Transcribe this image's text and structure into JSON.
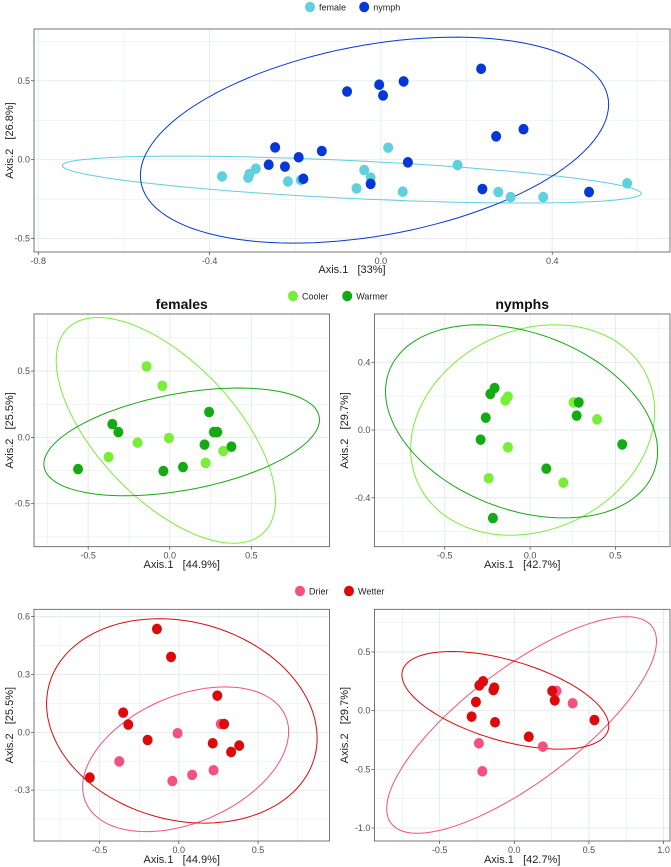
{
  "legends": [
    {
      "items": [
        {
          "label": "female",
          "color": "#5fd0dc"
        },
        {
          "label": "nymph",
          "color": "#0638d8"
        }
      ]
    },
    {
      "items": [
        {
          "label": "Cooler",
          "color": "#78ee38"
        },
        {
          "label": "Warmer",
          "color": "#14aa14"
        }
      ]
    },
    {
      "items": [
        {
          "label": "Drier",
          "color": "#f5507e"
        },
        {
          "label": "Wetter",
          "color": "#dc0a0a"
        }
      ]
    }
  ],
  "chart_data": [
    {
      "type": "scatter",
      "title": "",
      "xlabel": "Axis.1   [33%]",
      "ylabel": "Axis.2   [26.8%]",
      "xlim": [
        -0.81,
        0.675
      ],
      "ylim": [
        -0.585,
        0.828
      ],
      "xticks": [
        -0.8,
        -0.4,
        0.0,
        0.4
      ],
      "xtick_labels": [
        "-0.8",
        "-0.4",
        "0.0",
        "0.4"
      ],
      "yticks": [
        -0.5,
        0.0,
        0.5
      ],
      "ytick_labels": [
        "-0.5",
        "0.0",
        "0.5"
      ],
      "grid": true,
      "series": [
        {
          "name": "female",
          "color": "#5fd0dc",
          "ellipse": {
            "center": [
              -0.068,
              -0.126
            ],
            "u": [
              0.676,
              -0.088
            ],
            "v": [
              0.0,
              0.12
            ]
          },
          "points": [
            [
              -0.371,
              -0.106
            ],
            [
              -0.31,
              -0.114
            ],
            [
              -0.307,
              -0.091
            ],
            [
              -0.292,
              -0.057
            ],
            [
              -0.217,
              -0.138
            ],
            [
              -0.187,
              -0.129
            ],
            [
              0.017,
              0.076
            ],
            [
              -0.039,
              -0.066
            ],
            [
              -0.024,
              -0.114
            ],
            [
              -0.057,
              -0.182
            ],
            [
              0.051,
              -0.203
            ],
            [
              0.179,
              -0.034
            ],
            [
              0.274,
              -0.205
            ],
            [
              0.303,
              -0.237
            ],
            [
              0.379,
              -0.237
            ],
            [
              0.575,
              -0.15
            ]
          ]
        },
        {
          "name": "nymph",
          "color": "#0638d8",
          "ellipse": {
            "center": [
              -0.015,
              0.124
            ],
            "u": [
              0.54,
              0.127
            ],
            "v": [
              0.085,
              0.64
            ]
          },
          "points": [
            [
              -0.247,
              0.078
            ],
            [
              -0.262,
              -0.032
            ],
            [
              -0.224,
              -0.044
            ],
            [
              -0.192,
              0.015
            ],
            [
              -0.181,
              -0.121
            ],
            [
              -0.138,
              0.055
            ],
            [
              -0.079,
              0.432
            ],
            [
              -0.004,
              0.475
            ],
            [
              0.005,
              0.407
            ],
            [
              0.053,
              0.496
            ],
            [
              0.063,
              -0.017
            ],
            [
              -0.024,
              -0.153
            ],
            [
              0.234,
              0.576
            ],
            [
              0.269,
              0.148
            ],
            [
              0.333,
              0.193
            ],
            [
              0.237,
              -0.186
            ],
            [
              0.486,
              -0.205
            ]
          ]
        }
      ]
    },
    {
      "type": "scatter",
      "title": "females",
      "xlabel": "Axis.1   [44.9%]",
      "ylabel": "Axis.2   [25.5%]",
      "xlim": [
        -0.832,
        0.979
      ],
      "ylim": [
        -0.824,
        0.93
      ],
      "xticks": [
        -0.5,
        0.0,
        0.5
      ],
      "xtick_labels": [
        "-0.5",
        "0.0",
        "0.5"
      ],
      "yticks": [
        -0.5,
        0.0,
        0.5
      ],
      "ytick_labels": [
        "-0.5",
        "0.0",
        "0.5"
      ],
      "grid": true,
      "series": [
        {
          "name": "Cooler",
          "color": "#78ee38",
          "ellipse": {
            "center": [
              -0.024,
              0.053
            ],
            "u": [
              0.65,
              -0.34
            ],
            "v": [
              -0.17,
              0.78
            ]
          },
          "points": [
            [
              -0.142,
              0.535
            ],
            [
              -0.045,
              0.389
            ],
            [
              -0.197,
              -0.04
            ],
            [
              -0.005,
              -0.005
            ],
            [
              -0.375,
              -0.148
            ],
            [
              0.22,
              -0.193
            ],
            [
              0.328,
              -0.103
            ]
          ]
        },
        {
          "name": "Warmer",
          "color": "#14aa14",
          "ellipse": {
            "center": [
              0.073,
              -0.034
            ],
            "u": [
              0.827,
              0.089
            ],
            "v": [
              0.171,
              0.396
            ]
          },
          "points": [
            [
              -0.352,
              0.1
            ],
            [
              -0.315,
              0.04
            ],
            [
              -0.562,
              -0.239
            ],
            [
              -0.039,
              -0.254
            ],
            [
              0.081,
              -0.224
            ],
            [
              0.213,
              -0.055
            ],
            [
              0.241,
              0.191
            ],
            [
              0.27,
              0.04
            ],
            [
              0.291,
              0.04
            ],
            [
              0.378,
              -0.07
            ]
          ]
        }
      ]
    },
    {
      "type": "scatter",
      "title": "nymphs",
      "xlabel": "Axis.1   [42.7%]",
      "ylabel": "Axis.2   [29.7%]",
      "xlim": [
        -0.9125,
        0.82
      ],
      "ylim": [
        -0.689,
        0.685
      ],
      "xticks": [
        -0.5,
        0.0,
        0.5
      ],
      "xtick_labels": [
        "-0.5",
        "0.0",
        "0.5"
      ],
      "yticks": [
        -0.4,
        0.0,
        0.4
      ],
      "ytick_labels": [
        "-0.4",
        "0.0",
        "0.4"
      ],
      "grid": true,
      "series": [
        {
          "name": "Cooler",
          "color": "#78ee38",
          "ellipse": {
            "center": [
              0.015,
              0.0
            ],
            "u": [
              0.71,
              0.039
            ],
            "v": [
              0.085,
              0.62
            ]
          },
          "points": [
            [
              -0.13,
              0.197
            ],
            [
              -0.145,
              0.175
            ],
            [
              0.255,
              0.163
            ],
            [
              0.393,
              0.063
            ],
            [
              -0.13,
              -0.102
            ],
            [
              -0.243,
              -0.285
            ],
            [
              0.195,
              -0.311
            ]
          ]
        },
        {
          "name": "Warmer",
          "color": "#14aa14",
          "ellipse": {
            "center": [
              -0.05,
              0.051
            ],
            "u": [
              0.7875,
              -0.09
            ],
            "v": [
              -0.125,
              0.563
            ]
          },
          "points": [
            [
              -0.208,
              0.248
            ],
            [
              -0.233,
              0.213
            ],
            [
              0.285,
              0.163
            ],
            [
              -0.26,
              0.073
            ],
            [
              0.273,
              0.085
            ],
            [
              -0.29,
              -0.057
            ],
            [
              0.54,
              -0.085
            ],
            [
              0.095,
              -0.228
            ],
            [
              -0.218,
              -0.52
            ]
          ]
        }
      ]
    },
    {
      "type": "scatter",
      "title": "",
      "xlabel": "Axis.1   [44.9%]",
      "ylabel": "Axis.2   [25.5%]",
      "xlim": [
        -0.914,
        0.951
      ],
      "ylim": [
        -0.564,
        0.638
      ],
      "xticks": [
        -0.5,
        0.0,
        0.5
      ],
      "xtick_labels": [
        "-0.5",
        "0.0",
        "0.5"
      ],
      "yticks": [
        -0.3,
        0.0,
        0.3,
        0.6
      ],
      "ytick_labels": [
        "-0.3",
        "0.0",
        "0.3",
        "0.6"
      ],
      "grid": true,
      "series": [
        {
          "name": "Drier",
          "color": "#f5507e",
          "ellipse": {
            "center": [
              0.043,
              -0.14
            ],
            "u": [
              0.638,
              0.074
            ],
            "v": [
              0.125,
              0.368
            ]
          },
          "points": [
            [
              -0.008,
              -0.005
            ],
            [
              -0.376,
              -0.151
            ],
            [
              -0.041,
              -0.253
            ],
            [
              0.084,
              -0.221
            ],
            [
              0.219,
              -0.197
            ],
            [
              0.265,
              0.043
            ]
          ]
        },
        {
          "name": "Wetter",
          "color": "#dc0a0a",
          "ellipse": {
            "center": [
              0.019,
              0.059
            ],
            "u": [
              0.851,
              -0.047
            ],
            "v": [
              -0.068,
              0.528
            ]
          },
          "points": [
            [
              -0.138,
              0.536
            ],
            [
              -0.049,
              0.391
            ],
            [
              -0.351,
              0.102
            ],
            [
              -0.319,
              0.04
            ],
            [
              -0.562,
              -0.235
            ],
            [
              -0.197,
              -0.04
            ],
            [
              0.243,
              0.19
            ],
            [
              0.286,
              0.043
            ],
            [
              0.214,
              -0.057
            ],
            [
              0.33,
              -0.102
            ],
            [
              0.381,
              -0.069
            ]
          ]
        }
      ]
    },
    {
      "type": "scatter",
      "title": "",
      "xlabel": "Axis.1   [42.7%]",
      "ylabel": "Axis.2   [29.7%]",
      "xlim": [
        -0.937,
        1.043
      ],
      "ylim": [
        -1.111,
        0.864
      ],
      "xticks": [
        -0.5,
        0.0,
        0.5,
        1.0
      ],
      "xtick_labels": [
        "-0.5",
        "0.0",
        "0.5",
        "1.0"
      ],
      "yticks": [
        -1.0,
        -0.5,
        0.0,
        0.5
      ],
      "ytick_labels": [
        "-1.0",
        "-0.5",
        "0.0",
        "0.5"
      ],
      "grid": true,
      "series": [
        {
          "name": "Drier",
          "color": "#f5507e",
          "ellipse": {
            "center": [
              0.049,
              -0.122
            ],
            "u": [
              0.8,
              0.36
            ],
            "v": [
              0.42,
              0.85
            ]
          },
          "points": [
            [
              0.283,
              0.168
            ],
            [
              0.391,
              0.063
            ],
            [
              -0.237,
              -0.278
            ],
            [
              0.191,
              -0.307
            ],
            [
              -0.214,
              -0.517
            ]
          ]
        },
        {
          "name": "Wetter",
          "color": "#dc0a0a",
          "ellipse": {
            "center": [
              -0.06,
              0.088
            ],
            "u": [
              0.666,
              -0.111
            ],
            "v": [
              -0.191,
              0.401
            ]
          },
          "points": [
            [
              -0.209,
              0.25
            ],
            [
              -0.234,
              0.216
            ],
            [
              -0.134,
              0.196
            ],
            [
              -0.14,
              0.176
            ],
            [
              0.254,
              0.168
            ],
            [
              0.271,
              0.088
            ],
            [
              -0.257,
              0.074
            ],
            [
              -0.286,
              -0.051
            ],
            [
              -0.129,
              -0.099
            ],
            [
              0.537,
              -0.08
            ],
            [
              0.097,
              -0.222
            ]
          ]
        }
      ]
    }
  ]
}
